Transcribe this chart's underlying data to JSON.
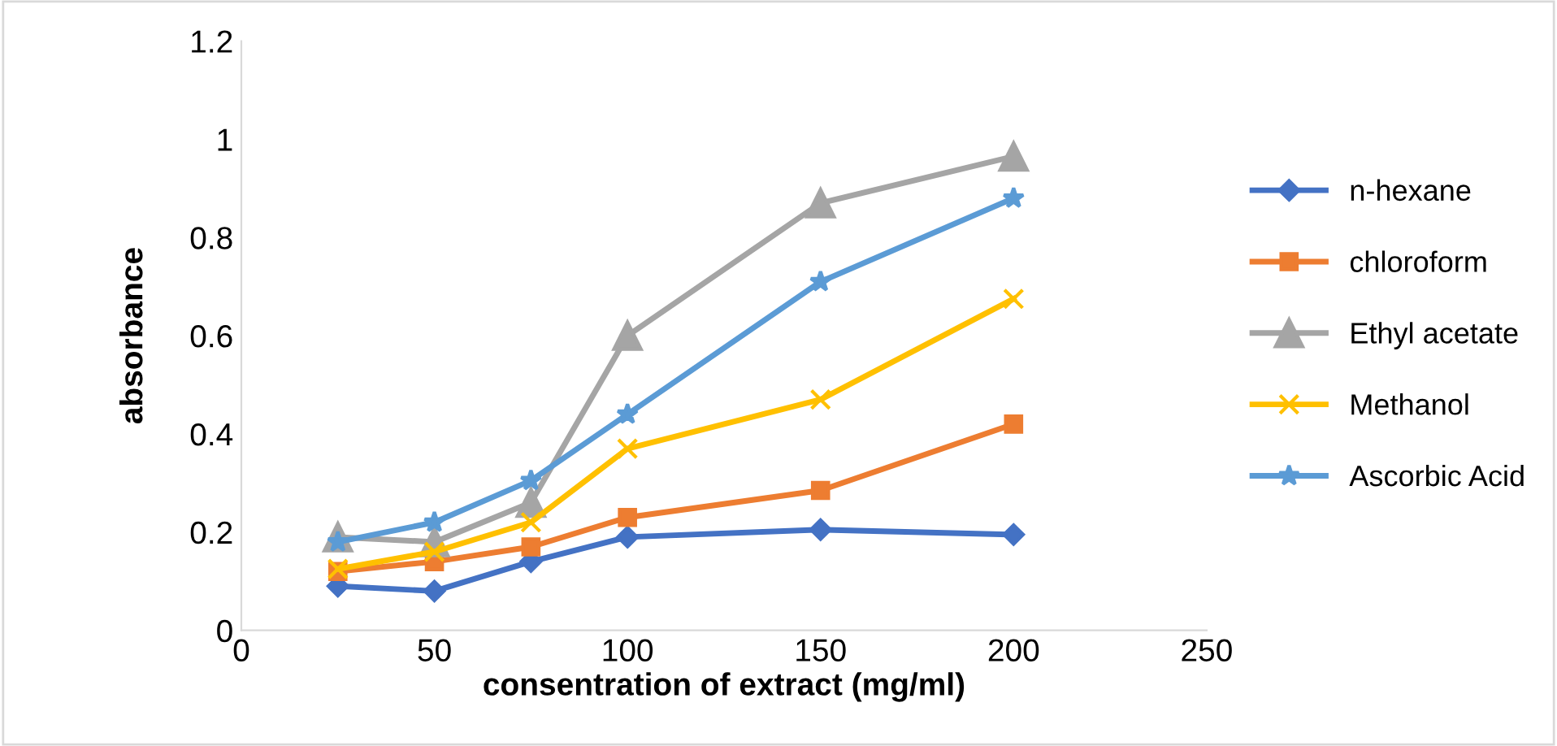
{
  "chart_data": {
    "type": "line",
    "xlabel": "consentration of extract (mg/ml)",
    "ylabel": "absorbance",
    "x": [
      25,
      50,
      75,
      100,
      150,
      200
    ],
    "series": [
      {
        "name": "n-hexane",
        "color": "#4472c4",
        "marker": "diamond",
        "values": [
          0.09,
          0.08,
          0.14,
          0.19,
          0.205,
          0.195
        ]
      },
      {
        "name": "chloroform",
        "color": "#ed7d31",
        "marker": "square",
        "values": [
          0.12,
          0.14,
          0.17,
          0.23,
          0.285,
          0.42
        ]
      },
      {
        "name": "Ethyl acetate",
        "color": "#a5a5a5",
        "marker": "triangle",
        "values": [
          0.19,
          0.18,
          0.26,
          0.6,
          0.87,
          0.965
        ]
      },
      {
        "name": "Methanol",
        "color": "#ffc000",
        "marker": "cross",
        "values": [
          0.125,
          0.16,
          0.22,
          0.37,
          0.47,
          0.675
        ]
      },
      {
        "name": "Ascorbic Acid",
        "color": "#5b9bd5",
        "marker": "star",
        "values": [
          0.18,
          0.22,
          0.305,
          0.44,
          0.71,
          0.88
        ]
      }
    ],
    "xlim": [
      0,
      250
    ],
    "xticks": [
      0,
      50,
      100,
      150,
      200,
      250
    ],
    "ylim": [
      0,
      1.2
    ],
    "yticks": [
      0,
      0.2,
      0.4,
      0.6,
      0.8,
      1,
      1.2
    ],
    "grid": false,
    "legend": "right",
    "line_style": "solid"
  }
}
